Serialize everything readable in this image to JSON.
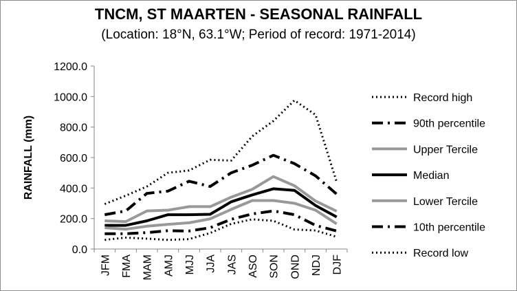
{
  "title": "TNCM, ST MAARTEN - SEASONAL RAINFALL",
  "subtitle": "(Location: 18°N, 63.1°W; Period of record: 1971-2014)",
  "chart_data": {
    "type": "line",
    "ylabel": "RAINFALL (mm)",
    "xlabel": "",
    "ylim": [
      0,
      1200
    ],
    "y_ticks": [
      "0.0",
      "200.0",
      "400.0",
      "600.0",
      "800.0",
      "1000.0",
      "1200.0"
    ],
    "categories": [
      "JFM",
      "FMA",
      "MAM",
      "AMJ",
      "MJJ",
      "JJA",
      "JAS",
      "ASO",
      "SON",
      "OND",
      "NDJ",
      "DJF"
    ],
    "grid": false,
    "legend_position": "right",
    "series": [
      {
        "name": "Record high",
        "style": "dotted",
        "color": "#000000",
        "values": [
          295,
          350,
          410,
          500,
          515,
          585,
          580,
          740,
          840,
          975,
          880,
          440
        ]
      },
      {
        "name": "90th percentile",
        "style": "dashdot",
        "color": "#000000",
        "values": [
          225,
          250,
          365,
          380,
          445,
          410,
          500,
          550,
          615,
          560,
          480,
          360
        ]
      },
      {
        "name": "Upper Tercile",
        "style": "solid",
        "color": "#999999",
        "values": [
          185,
          180,
          250,
          255,
          278,
          278,
          340,
          392,
          475,
          415,
          315,
          248
        ]
      },
      {
        "name": "Median",
        "style": "solid",
        "color": "#000000",
        "values": [
          155,
          155,
          185,
          225,
          225,
          228,
          310,
          355,
          395,
          385,
          285,
          210
        ]
      },
      {
        "name": "Lower Tercile",
        "style": "solid",
        "color": "#999999",
        "values": [
          140,
          130,
          150,
          162,
          172,
          198,
          260,
          318,
          318,
          300,
          255,
          165
        ]
      },
      {
        "name": "10th percentile",
        "style": "dashdot",
        "color": "#000000",
        "values": [
          100,
          100,
          108,
          120,
          118,
          140,
          195,
          230,
          250,
          225,
          155,
          118
        ]
      },
      {
        "name": "Record low",
        "style": "dotted",
        "color": "#000000",
        "values": [
          60,
          75,
          68,
          60,
          65,
          105,
          165,
          195,
          185,
          128,
          122,
          80
        ]
      }
    ]
  }
}
